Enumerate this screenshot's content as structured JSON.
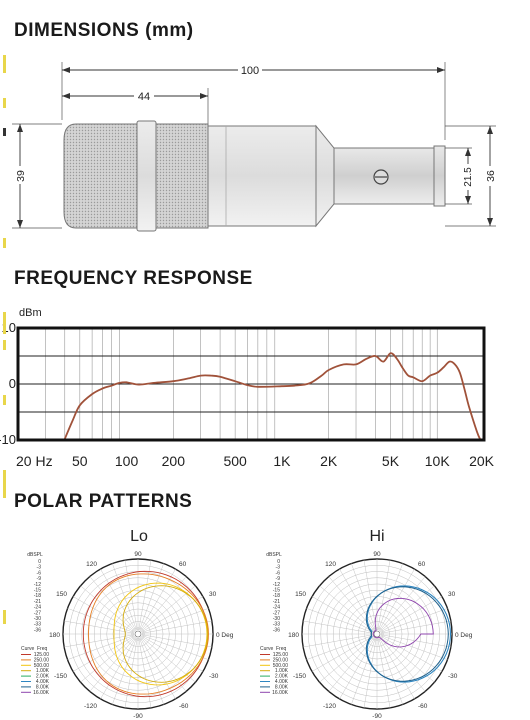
{
  "sections": {
    "dimensions": "DIMENSIONS (mm)",
    "frequency": "FREQUENCY RESPONSE",
    "polar": "POLAR PATTERNS"
  },
  "dimensions": {
    "total_length": "100",
    "head_length": "44",
    "head_diameter": "39",
    "body_diameter": "36",
    "connector_diameter": "21.5"
  },
  "chart_data": {
    "type": "line",
    "title": "",
    "xlabel": "",
    "ylabel": "dBm",
    "x_scale": "log",
    "xlim": [
      20,
      20000
    ],
    "ylim": [
      -10,
      10
    ],
    "x_ticks": [
      {
        "value": 20,
        "label": "20 Hz"
      },
      {
        "value": 50,
        "label": "50"
      },
      {
        "value": 100,
        "label": "100"
      },
      {
        "value": 200,
        "label": "200"
      },
      {
        "value": 500,
        "label": "500"
      },
      {
        "value": 1000,
        "label": "1K"
      },
      {
        "value": 2000,
        "label": "2K"
      },
      {
        "value": 5000,
        "label": "5K"
      },
      {
        "value": 10000,
        "label": "10K"
      },
      {
        "value": 20000,
        "label": "20K"
      }
    ],
    "y_ticks": [
      {
        "value": 10,
        "label": "10"
      },
      {
        "value": 0,
        "label": "0"
      },
      {
        "value": -10,
        "label": "-10"
      }
    ],
    "series": [
      {
        "color": "#a0523a",
        "points": [
          [
            40,
            -9.8
          ],
          [
            45,
            -6.5
          ],
          [
            50,
            -3.8
          ],
          [
            60,
            -1.8
          ],
          [
            70,
            -0.8
          ],
          [
            80,
            -0.3
          ],
          [
            90,
            0.2
          ],
          [
            100,
            0.3
          ],
          [
            120,
            -0.1
          ],
          [
            150,
            0.2
          ],
          [
            200,
            0.5
          ],
          [
            250,
            1.0
          ],
          [
            300,
            1.5
          ],
          [
            350,
            1.5
          ],
          [
            400,
            1.3
          ],
          [
            500,
            0.5
          ],
          [
            600,
            -0.2
          ],
          [
            700,
            -0.5
          ],
          [
            1000,
            -0.4
          ],
          [
            1200,
            -0.3
          ],
          [
            1500,
            0.1
          ],
          [
            1800,
            1.5
          ],
          [
            2000,
            2.5
          ],
          [
            2500,
            3.5
          ],
          [
            3000,
            3.5
          ],
          [
            3500,
            4.5
          ],
          [
            4000,
            5.0
          ],
          [
            4500,
            4.0
          ],
          [
            5000,
            5.5
          ],
          [
            5500,
            4.5
          ],
          [
            6000,
            2.8
          ],
          [
            6500,
            1.5
          ],
          [
            7000,
            1.2
          ],
          [
            8000,
            0.5
          ],
          [
            9000,
            1.5
          ],
          [
            10000,
            2.0
          ],
          [
            11000,
            3.0
          ],
          [
            12000,
            4.0
          ],
          [
            13000,
            3.5
          ],
          [
            14000,
            2.0
          ],
          [
            15000,
            -1.0
          ],
          [
            16000,
            -4.0
          ],
          [
            18000,
            -8.5
          ],
          [
            19000,
            -10.0
          ]
        ]
      }
    ]
  },
  "polar": {
    "lo": {
      "title": "Lo",
      "scale_label": "dBSPL",
      "scale_values": [
        "0",
        "-3",
        "-6",
        "-9",
        "-12",
        "-15",
        "-18",
        "-21",
        "-24",
        "-27",
        "-30",
        "-33",
        "-36"
      ],
      "angle_labels": {
        "a0": "0 Deg",
        "a30": "30",
        "a60": "60",
        "a90": "90",
        "a120": "120",
        "a150": "150",
        "a180": "180",
        "am30": "-30",
        "am60": "-60",
        "am90": "-90",
        "am120": "-120",
        "am150": "-150"
      },
      "legend": {
        "curve_header": "Curve",
        "freq_header": "Freq",
        "items": [
          {
            "freq": "125.00",
            "color": "#c0392b"
          },
          {
            "freq": "250.00",
            "color": "#e67e22"
          },
          {
            "freq": "500.00",
            "color": "#f1c40f"
          },
          {
            "freq": "1.00K",
            "color": "#d4ac0d"
          },
          {
            "freq": "2.00K",
            "color": "#27ae60"
          },
          {
            "freq": "4.00K",
            "color": "#2e86c1"
          },
          {
            "freq": "8.00K",
            "color": "#1f618d"
          },
          {
            "freq": "16.00K",
            "color": "#8e44ad"
          }
        ]
      }
    },
    "hi": {
      "title": "Hi",
      "scale_label": "dBSPL",
      "scale_values": [
        "0",
        "-3",
        "-6",
        "-9",
        "-12",
        "-15",
        "-18",
        "-21",
        "-24",
        "-27",
        "-30",
        "-33",
        "-36"
      ],
      "angle_labels": {
        "a0": "0 Deg",
        "a30": "30",
        "a60": "60",
        "a90": "90",
        "a120": "120",
        "a150": "150",
        "a180": "180",
        "am30": "-30",
        "am60": "-60",
        "am90": "-90",
        "am120": "-120",
        "am150": "-150"
      },
      "legend": {
        "curve_header": "Curve",
        "freq_header": "Freq",
        "items": [
          {
            "freq": "125.00",
            "color": "#c0392b"
          },
          {
            "freq": "250.00",
            "color": "#e67e22"
          },
          {
            "freq": "500.00",
            "color": "#f1c40f"
          },
          {
            "freq": "1.00K",
            "color": "#d4ac0d"
          },
          {
            "freq": "2.00K",
            "color": "#27ae60"
          },
          {
            "freq": "4.00K",
            "color": "#2e86c1"
          },
          {
            "freq": "8.00K",
            "color": "#1f618d"
          },
          {
            "freq": "16.00K",
            "color": "#8e44ad"
          }
        ]
      }
    }
  }
}
